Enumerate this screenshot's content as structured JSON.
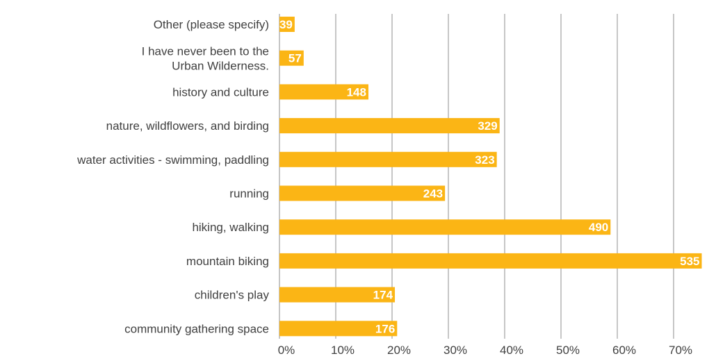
{
  "chart_data": {
    "type": "bar",
    "orientation": "horizontal",
    "title": "",
    "xlabel": "",
    "ylabel": "",
    "categories": [
      "Other (please specify)",
      "I have never been to the Urban Wilderness.",
      "history and culture",
      "nature, wildflowers,  and birding",
      "water activities - swimming, paddling",
      "running",
      "hiking, walking",
      "mountain biking",
      "children's play",
      "community gathering space"
    ],
    "category_lines": [
      [
        "Other (please specify)"
      ],
      [
        "I have never been to the",
        "Urban Wilderness."
      ],
      [
        "history and culture"
      ],
      [
        "nature, wildflowers,  and birding"
      ],
      [
        "water activities - swimming, paddling"
      ],
      [
        "running"
      ],
      [
        "hiking, walking"
      ],
      [
        "mountain biking"
      ],
      [
        "children's play"
      ],
      [
        "community gathering space"
      ]
    ],
    "percent_values": [
      2.7,
      4.3,
      15.8,
      39.1,
      38.6,
      29.4,
      58.8,
      75.0,
      20.5,
      20.9
    ],
    "count_labels": [
      "39",
      "57",
      "148",
      "329",
      "323",
      "243",
      "490",
      "535",
      "174",
      "176"
    ],
    "xlim": [
      0,
      75
    ],
    "x_ticks": [
      "0%",
      "10%",
      "20%",
      "30%",
      "40%",
      "50%",
      "60%",
      "70%"
    ],
    "grid": true,
    "bar_color": "#FBB515",
    "label_color": "#FFFFFF"
  }
}
